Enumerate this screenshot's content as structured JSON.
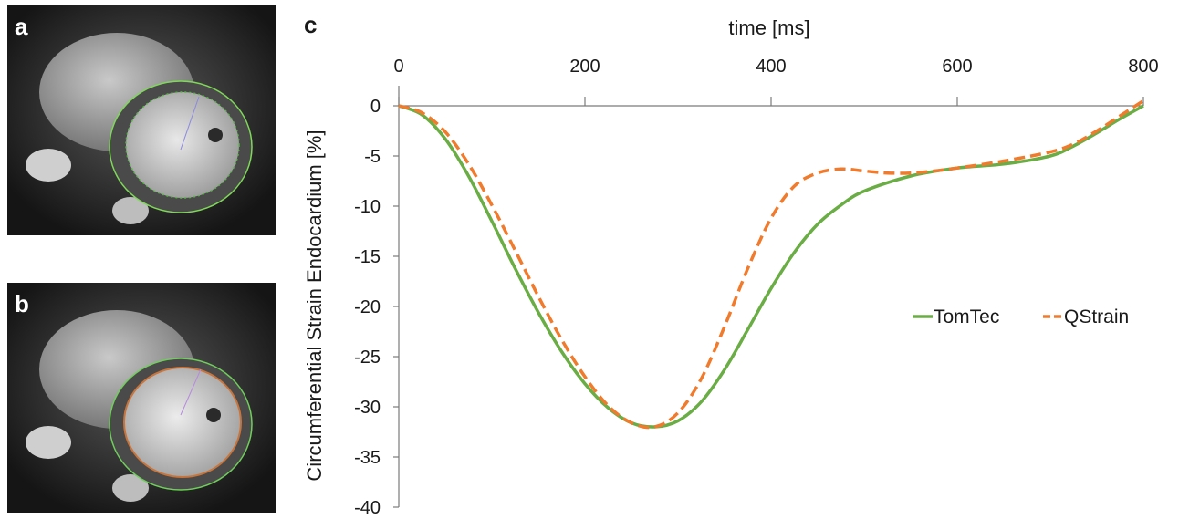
{
  "panels": [
    {
      "letter": "a",
      "contour_colors": [
        "#7ed957",
        "#58b947"
      ]
    },
    {
      "letter": "b",
      "contour_colors": [
        "#6fcf5a",
        "#c8743a"
      ]
    }
  ],
  "chart_letter": "c",
  "chart_data": {
    "type": "line",
    "xlabel": "time [ms]",
    "ylabel": "Circumferential Strain Endocardium [%]",
    "xlim": [
      0,
      800
    ],
    "ylim": [
      -40,
      0
    ],
    "x_ticks": [
      "0",
      "200",
      "400",
      "600",
      "800"
    ],
    "y_ticks": [
      "0",
      "-5",
      "-10",
      "-15",
      "-20",
      "-25",
      "-30",
      "-35",
      "-40"
    ],
    "x_axis_position": "top",
    "grid": false,
    "legend_position": "right-middle",
    "series": [
      {
        "name": "TomTec",
        "color": "#6aad45",
        "style": "solid",
        "x": [
          0,
          25,
          50,
          75,
          100,
          125,
          150,
          175,
          200,
          225,
          250,
          275,
          300,
          325,
          350,
          375,
          400,
          425,
          450,
          475,
          500,
          550,
          600,
          650,
          700,
          725,
          750,
          775,
          800
        ],
        "y": [
          0,
          -0.9,
          -3.3,
          -7.0,
          -11.5,
          -16.2,
          -20.6,
          -24.5,
          -27.7,
          -30.1,
          -31.6,
          -32.0,
          -31.4,
          -29.5,
          -26.3,
          -22.3,
          -18.2,
          -14.6,
          -11.8,
          -9.9,
          -8.5,
          -7.0,
          -6.2,
          -5.8,
          -5.0,
          -4.0,
          -2.7,
          -1.3,
          0
        ]
      },
      {
        "name": "QStrain",
        "color": "#f07b2d",
        "style": "dashed",
        "x": [
          0,
          25,
          50,
          75,
          100,
          125,
          150,
          175,
          200,
          225,
          250,
          275,
          300,
          325,
          350,
          375,
          400,
          425,
          450,
          475,
          500,
          525,
          550,
          575,
          600,
          650,
          700,
          725,
          750,
          775,
          800
        ],
        "y": [
          0,
          -0.7,
          -2.6,
          -5.8,
          -9.9,
          -14.4,
          -19.0,
          -23.3,
          -27.0,
          -29.9,
          -31.6,
          -32.0,
          -30.6,
          -27.2,
          -22.0,
          -16.2,
          -11.2,
          -8.0,
          -6.7,
          -6.3,
          -6.5,
          -6.7,
          -6.7,
          -6.5,
          -6.2,
          -5.5,
          -4.6,
          -3.8,
          -2.5,
          -1.0,
          0.5
        ]
      }
    ]
  }
}
